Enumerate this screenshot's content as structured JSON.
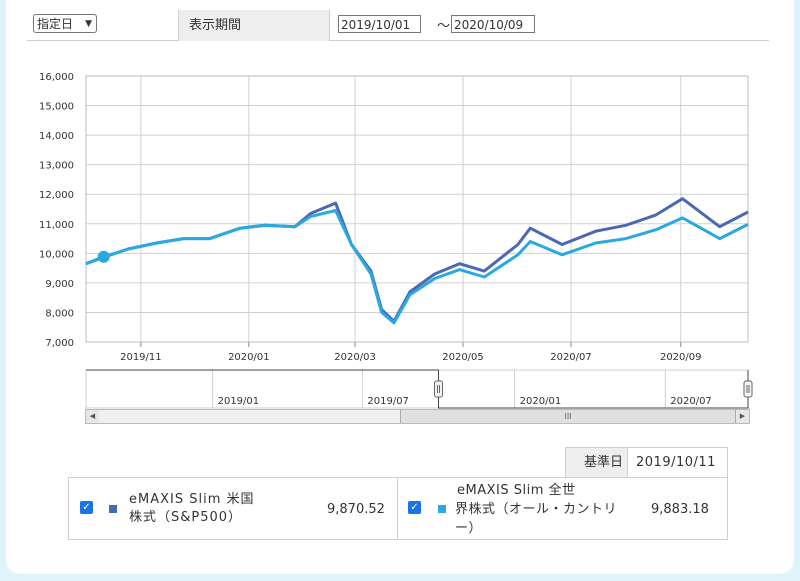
{
  "controls": {
    "mode_select": "指定日",
    "period_label": "表示期間",
    "start_date": "2019/10/01",
    "tilde": "～",
    "end_date": "2020/10/09"
  },
  "chart_data": {
    "type": "line",
    "ylim": [
      7000,
      16000
    ],
    "yticks": [
      "7,000",
      "8,000",
      "9,000",
      "10,000",
      "11,000",
      "12,000",
      "13,000",
      "14,000",
      "15,000",
      "16,000"
    ],
    "xlim": [
      "2019-10-01",
      "2020-10-09"
    ],
    "xticks": [
      {
        "label": "2019/11",
        "date": "2019-11-01"
      },
      {
        "label": "2020/01",
        "date": "2020-01-01"
      },
      {
        "label": "2020/03",
        "date": "2020-03-01"
      },
      {
        "label": "2020/05",
        "date": "2020-05-01"
      },
      {
        "label": "2020/07",
        "date": "2020-07-01"
      },
      {
        "label": "2020/09",
        "date": "2020-09-01"
      }
    ],
    "grid": true,
    "series": [
      {
        "name": "eMAXIS Slim 米国株式（S&P500）",
        "color": "#4a68b3",
        "points": [
          [
            "2019-10-01",
            9650
          ],
          [
            "2019-10-11",
            9870
          ],
          [
            "2019-10-25",
            10150
          ],
          [
            "2019-11-10",
            10350
          ],
          [
            "2019-11-25",
            10500
          ],
          [
            "2019-12-10",
            10500
          ],
          [
            "2019-12-27",
            10850
          ],
          [
            "2020-01-10",
            10950
          ],
          [
            "2020-01-27",
            10900
          ],
          [
            "2020-02-05",
            11350
          ],
          [
            "2020-02-19",
            11700
          ],
          [
            "2020-02-28",
            10300
          ],
          [
            "2020-03-10",
            9400
          ],
          [
            "2020-03-16",
            8100
          ],
          [
            "2020-03-23",
            7700
          ],
          [
            "2020-04-01",
            8700
          ],
          [
            "2020-04-15",
            9300
          ],
          [
            "2020-04-29",
            9650
          ],
          [
            "2020-05-13",
            9400
          ],
          [
            "2020-06-01",
            10300
          ],
          [
            "2020-06-08",
            10850
          ],
          [
            "2020-06-26",
            10300
          ],
          [
            "2020-07-15",
            10750
          ],
          [
            "2020-08-01",
            10950
          ],
          [
            "2020-08-18",
            11300
          ],
          [
            "2020-09-02",
            11850
          ],
          [
            "2020-09-23",
            10900
          ],
          [
            "2020-10-09",
            11400
          ]
        ]
      },
      {
        "name": "eMAXIS Slim 全世界株式（オール・カントリー）",
        "color": "#29a9e0",
        "points": [
          [
            "2019-10-01",
            9650
          ],
          [
            "2019-10-11",
            9883
          ],
          [
            "2019-10-25",
            10150
          ],
          [
            "2019-11-10",
            10350
          ],
          [
            "2019-11-25",
            10500
          ],
          [
            "2019-12-10",
            10500
          ],
          [
            "2019-12-27",
            10850
          ],
          [
            "2020-01-10",
            10950
          ],
          [
            "2020-01-27",
            10900
          ],
          [
            "2020-02-05",
            11250
          ],
          [
            "2020-02-19",
            11450
          ],
          [
            "2020-02-28",
            10300
          ],
          [
            "2020-03-10",
            9300
          ],
          [
            "2020-03-16",
            8000
          ],
          [
            "2020-03-23",
            7650
          ],
          [
            "2020-04-01",
            8600
          ],
          [
            "2020-04-15",
            9150
          ],
          [
            "2020-04-29",
            9450
          ],
          [
            "2020-05-13",
            9200
          ],
          [
            "2020-06-01",
            9950
          ],
          [
            "2020-06-08",
            10400
          ],
          [
            "2020-06-26",
            9950
          ],
          [
            "2020-07-15",
            10350
          ],
          [
            "2020-08-01",
            10500
          ],
          [
            "2020-08-18",
            10800
          ],
          [
            "2020-09-02",
            11200
          ],
          [
            "2020-09-23",
            10500
          ],
          [
            "2020-10-09",
            10980
          ]
        ]
      }
    ],
    "marker_date": "2019-10-11"
  },
  "navigator": {
    "labels": [
      {
        "label": "2019/01",
        "date": "2019-01-01"
      },
      {
        "label": "2019/07",
        "date": "2019-07-01"
      },
      {
        "label": "2020/01",
        "date": "2020-01-01"
      },
      {
        "label": "2020/07",
        "date": "2020-07-01"
      }
    ],
    "xlim": [
      "2018-08-01",
      "2020-10-09"
    ],
    "selected": [
      "2019-10-01",
      "2020-10-09"
    ],
    "thumb_grip": "III"
  },
  "base_date": {
    "label": "基準日",
    "value": "2019/10/11"
  },
  "legend": [
    {
      "checked": true,
      "name_line1": "eMAXIS Slim 米国",
      "name_line2": "株式（S&P500）",
      "value": "9,870.52",
      "color": "#4a68b3"
    },
    {
      "checked": true,
      "name_line1": "eMAXIS Slim 全世",
      "name_line2": "界株式（オール・カントリ",
      "name_line3": "ー）",
      "value": "9,883.18",
      "color": "#29a9e0"
    }
  ]
}
